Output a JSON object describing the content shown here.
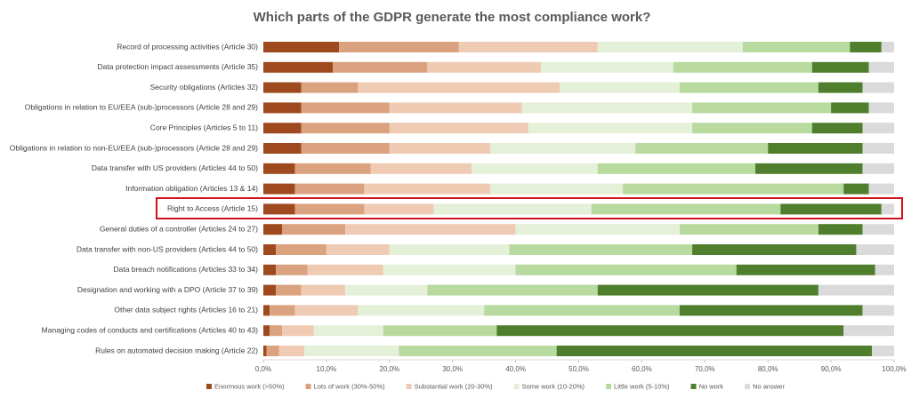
{
  "chart_data": {
    "type": "stacked-bar-horizontal",
    "title": "Which parts of the GDPR generate the most compliance work?",
    "categories": [
      "Record of processing activities (Article 30)",
      "Data protection impact assessments (Article 35)",
      "Security obligations (Articles 32)",
      "Obligations in relation to EU/EEA (sub-)processors (Article 28 and 29)",
      "Core Principles (Articles 5 to 11)",
      "Obligations in relation to non-EU/EEA (sub-)processors (Article 28 and 29)",
      "Data transfer with US providers (Articles 44 to 50)",
      "Information obligation (Articles 13 & 14)",
      "Right to Access (Article 15)",
      "General duties of a controller (Articles 24 to 27)",
      "Data transfer with non-US providers (Articles 44 to 50)",
      "Data breach notifications (Articles 33 to 34)",
      "Designation and working with a DPO (Article 37 to 39)",
      "Other data subject rights (Articles 16 to 21)",
      "Managing codes of conducts and certifications (Articles 40 to 43)",
      "Rules on automated decision making (Article 22)"
    ],
    "series": [
      {
        "name": "Enormous work (>50%)",
        "color": "#9e4a1e",
        "values": [
          12,
          11,
          6,
          6,
          6,
          6,
          5,
          5,
          5,
          3,
          2,
          2,
          2,
          1,
          1,
          0.5
        ]
      },
      {
        "name": "Lots of work (30%-50%)",
        "color": "#daa27e",
        "values": [
          19,
          15,
          9,
          14,
          14,
          14,
          12,
          11,
          11,
          10,
          8,
          5,
          4,
          4,
          2,
          2
        ]
      },
      {
        "name": "Substantial work (20-30%)",
        "color": "#efcbb3",
        "values": [
          22,
          18,
          32,
          21,
          22,
          16,
          16,
          20,
          11,
          27,
          10,
          12,
          7,
          10,
          5,
          4
        ]
      },
      {
        "name": "Some work (10-20%)",
        "color": "#e4f0d8",
        "values": [
          23,
          21,
          19,
          27,
          26,
          23,
          20,
          21,
          25,
          26,
          19,
          21,
          13,
          20,
          11,
          15
        ]
      },
      {
        "name": "Little work (5-10%)",
        "color": "#b8da9e",
        "values": [
          17,
          22,
          22,
          22,
          19,
          21,
          25,
          35,
          30,
          22,
          29,
          35,
          27,
          31,
          18,
          25
        ]
      },
      {
        "name": "No work",
        "color": "#4f7f2d",
        "values": [
          5,
          9,
          7,
          6,
          8,
          15,
          17,
          4,
          16,
          7,
          26,
          22,
          35,
          29,
          55,
          50
        ]
      },
      {
        "name": "No answer",
        "color": "#dadada",
        "values": [
          2,
          4,
          5,
          4,
          5,
          5,
          5,
          4,
          2,
          5,
          6,
          3,
          12,
          5,
          8,
          3.5
        ]
      }
    ],
    "xlim": [
      0,
      100
    ],
    "xticks": [
      {
        "value": 0,
        "label": "0,0%"
      },
      {
        "value": 10,
        "label": "10,0%"
      },
      {
        "value": 20,
        "label": "20,0%"
      },
      {
        "value": 30,
        "label": "30,0%"
      },
      {
        "value": 40,
        "label": "40,0%"
      },
      {
        "value": 50,
        "label": "50,0%"
      },
      {
        "value": 60,
        "label": "60,0%"
      },
      {
        "value": 70,
        "label": "70,0%"
      },
      {
        "value": 80,
        "label": "80,0%"
      },
      {
        "value": 90,
        "label": "90,0%"
      },
      {
        "value": 100,
        "label": "100,0%"
      }
    ],
    "legend": "bottom"
  }
}
